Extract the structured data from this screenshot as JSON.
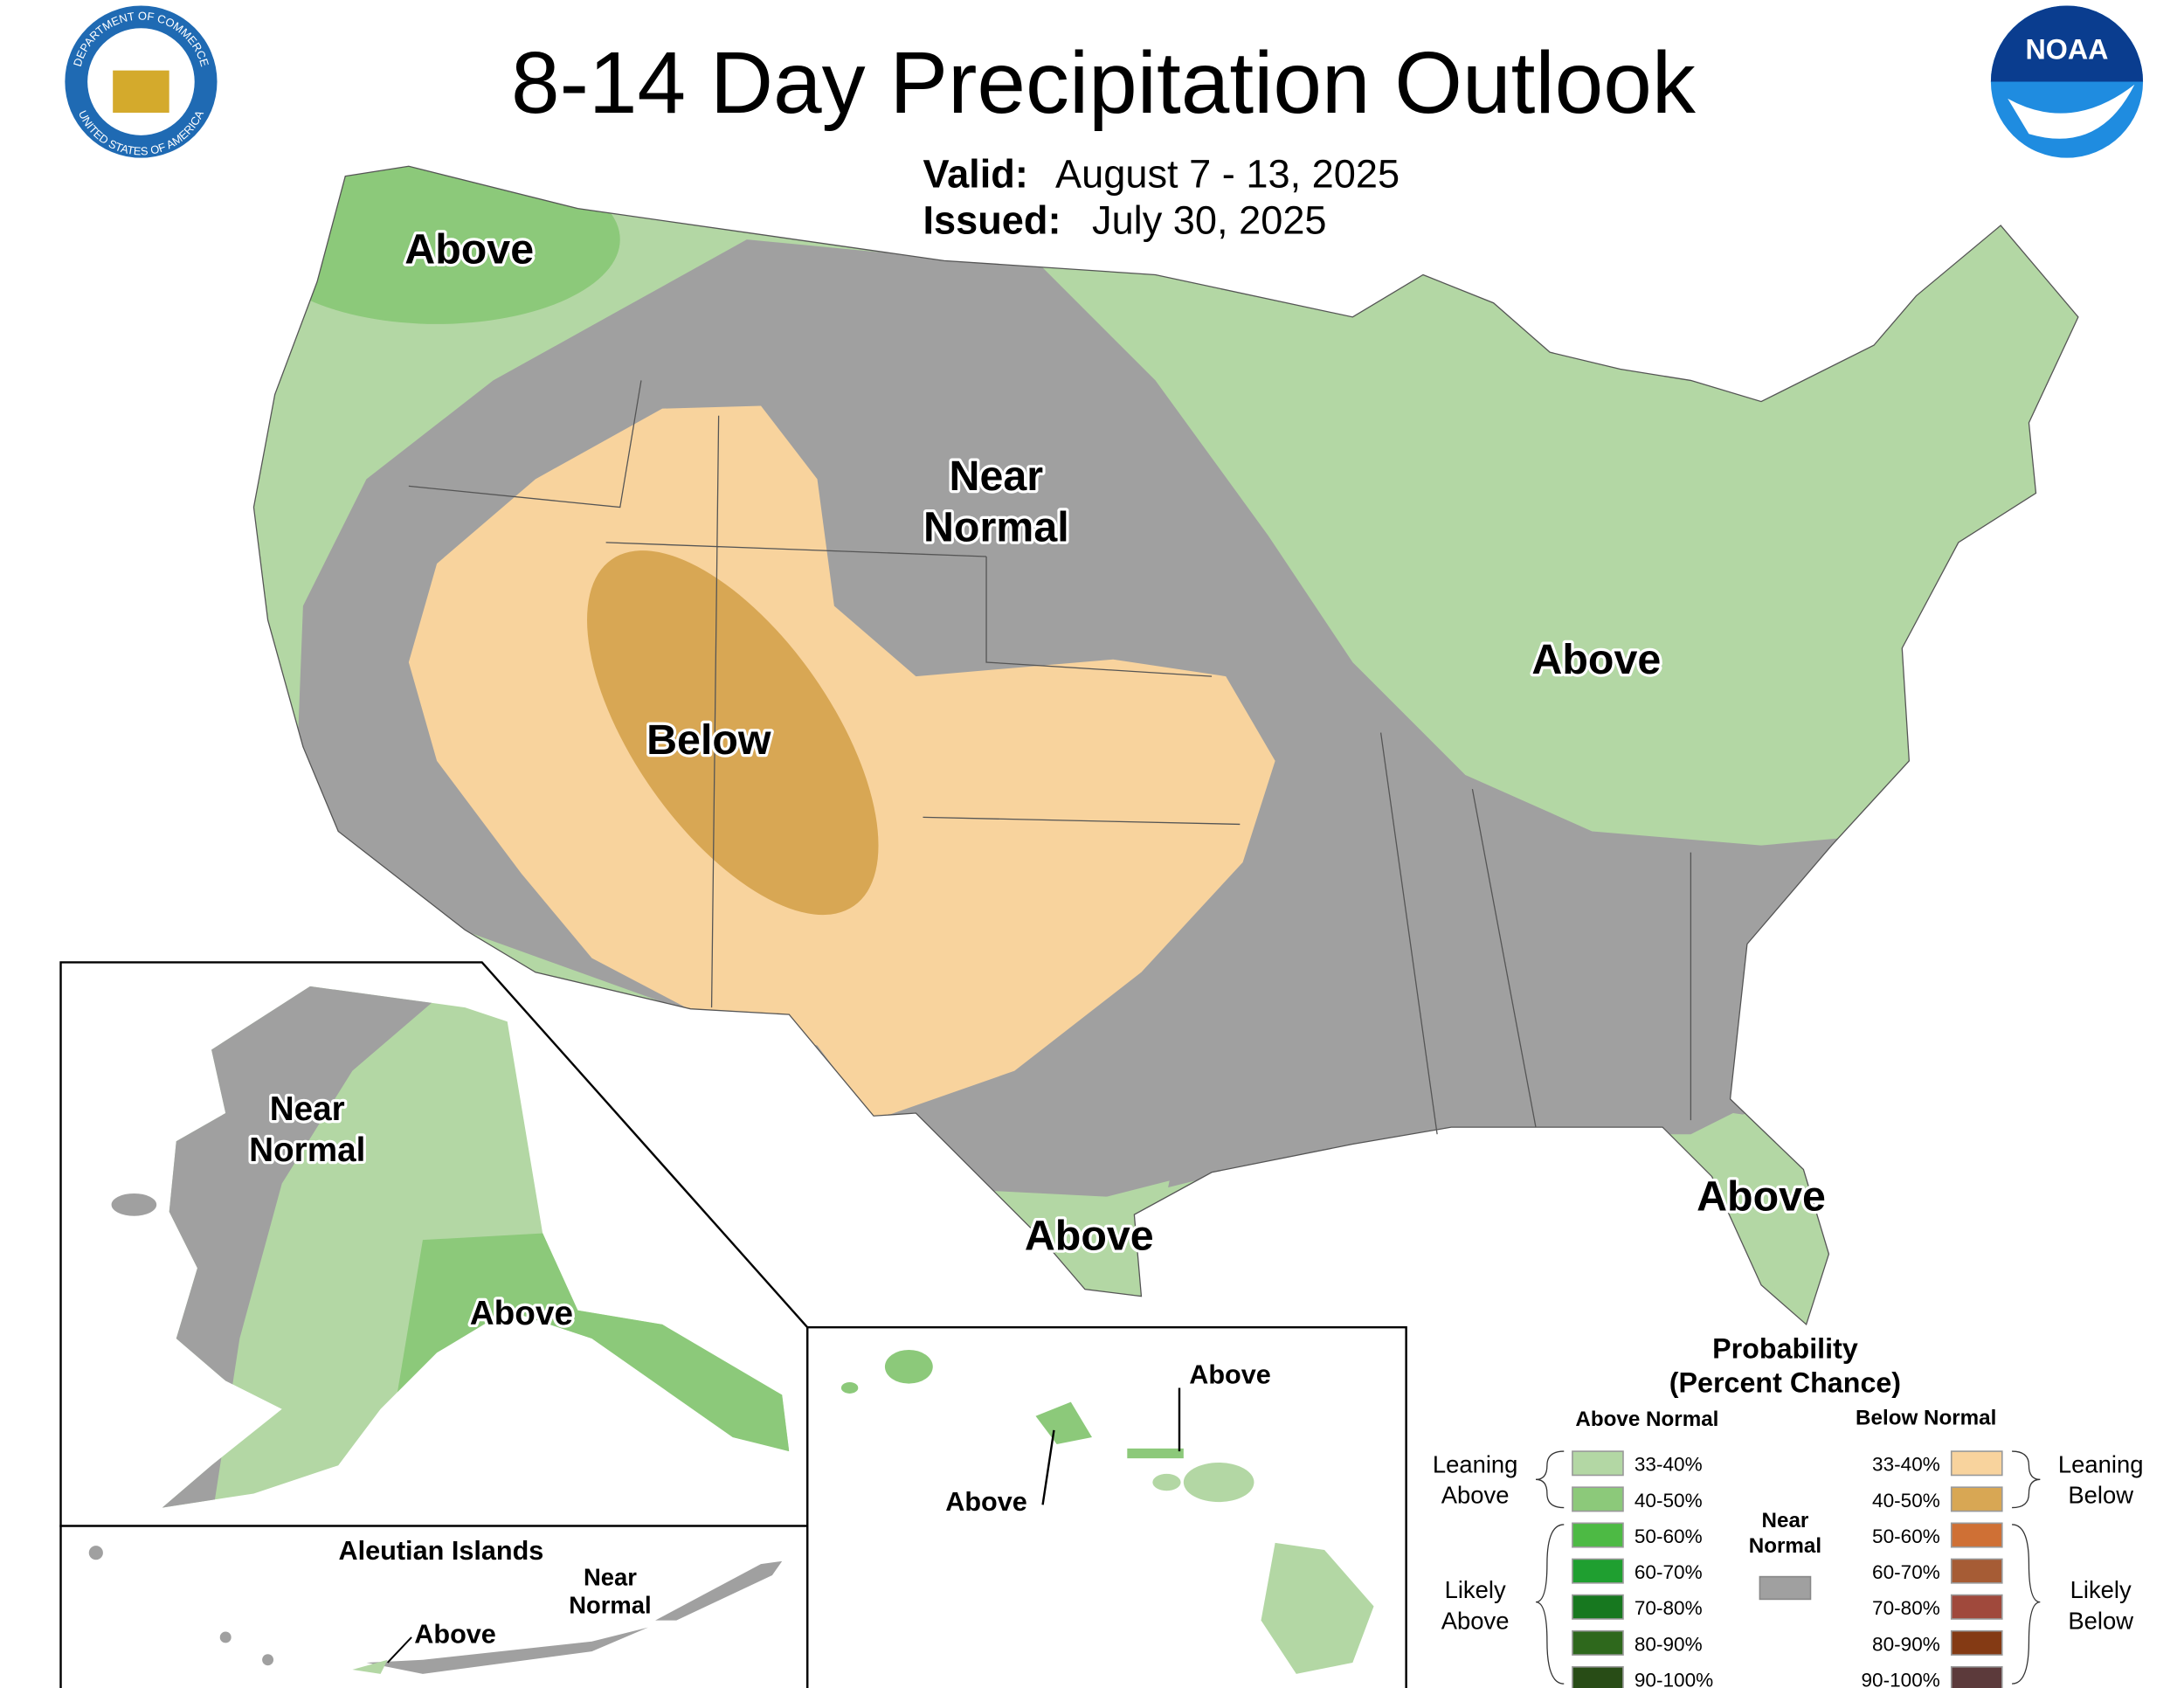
{
  "header": {
    "title": "8-14 Day Precipitation Outlook",
    "valid_label": "Valid:",
    "valid": "August 7 - 13, 2025",
    "issued_label": "Issued:",
    "issued": "July 30, 2025"
  },
  "seal": {
    "top": "DEPARTMENT OF COMMERCE",
    "bottom": "UNITED STATES OF AMERICA"
  },
  "noaa_logo": "NOAA",
  "map_labels": {
    "conus_northwest": "Above",
    "conus_center": [
      "Near",
      "Normal"
    ],
    "conus_east": "Above",
    "conus_west": "Below",
    "conus_texas": "Above",
    "conus_florida": "Above",
    "alaska_west": [
      "Near",
      "Normal"
    ],
    "alaska_south": "Above",
    "hawaii_north": "Above",
    "hawaii_west": "Above",
    "aleutian_title": "Aleutian Islands",
    "aleutian_east": [
      "Near",
      "Normal"
    ],
    "aleutian_west": "Above"
  },
  "legend": {
    "title": "Probability",
    "subtitle": "(Percent Chance)",
    "above_normal": {
      "heading": "Above Normal",
      "categories": [
        {
          "label": "33-40%",
          "color": "#b3d7a4"
        },
        {
          "label": "40-50%",
          "color": "#8cc97a"
        },
        {
          "label": "50-60%",
          "color": "#4dba44"
        },
        {
          "label": "60-70%",
          "color": "#1f9f30"
        },
        {
          "label": "70-80%",
          "color": "#17781f"
        },
        {
          "label": "80-90%",
          "color": "#2e681c"
        },
        {
          "label": "90-100%",
          "color": "#284c16"
        }
      ]
    },
    "below_normal": {
      "heading": "Below Normal",
      "categories": [
        {
          "label": "33-40%",
          "color": "#f8d39d"
        },
        {
          "label": "40-50%",
          "color": "#d8a754"
        },
        {
          "label": "50-60%",
          "color": "#cf7035"
        },
        {
          "label": "60-70%",
          "color": "#a65c35"
        },
        {
          "label": "70-80%",
          "color": "#a0493c"
        },
        {
          "label": "80-90%",
          "color": "#843a14"
        },
        {
          "label": "90-100%",
          "color": "#5c3a3b"
        }
      ]
    },
    "near_normal": {
      "label": [
        "Near",
        "Normal"
      ],
      "color": "#a0a0a0"
    },
    "groups": {
      "leaning_above": [
        "Leaning",
        "Above"
      ],
      "likely_above": [
        "Likely",
        "Above"
      ],
      "leaning_below": [
        "Leaning",
        "Below"
      ],
      "likely_below": [
        "Likely",
        "Below"
      ]
    }
  }
}
